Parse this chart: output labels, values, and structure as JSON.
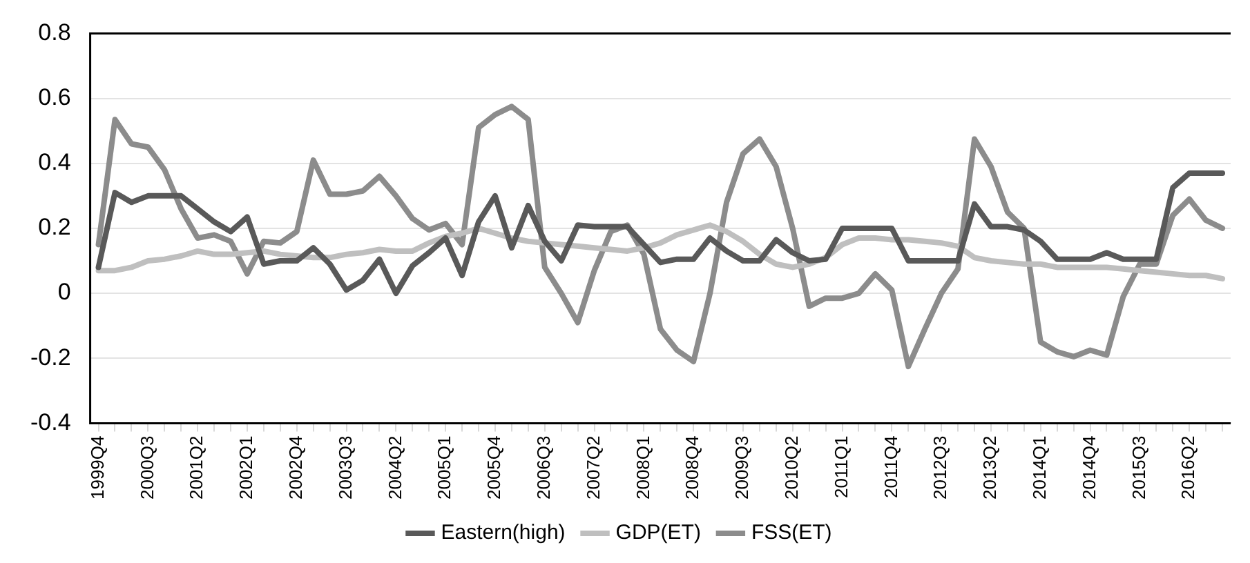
{
  "chart_data": {
    "type": "line",
    "categories": [
      "1999Q4",
      null,
      null,
      "2000Q3",
      null,
      null,
      "2001Q2",
      null,
      null,
      "2002Q1",
      null,
      null,
      "2002Q4",
      null,
      null,
      "2003Q3",
      null,
      null,
      "2004Q2",
      null,
      null,
      "2005Q1",
      null,
      null,
      "2005Q4",
      null,
      null,
      "2006Q3",
      null,
      null,
      "2007Q2",
      null,
      null,
      "2008Q1",
      null,
      null,
      "2008Q4",
      null,
      null,
      "2009Q3",
      null,
      null,
      "2010Q2",
      null,
      null,
      "2011Q1",
      null,
      null,
      "2011Q4",
      null,
      null,
      "2012Q3",
      null,
      null,
      "2013Q2",
      null,
      null,
      "2014Q1",
      null,
      null,
      "2014Q4",
      null,
      null,
      "2015Q3",
      null,
      null,
      "2016Q2",
      null,
      null
    ],
    "series": [
      {
        "name": "Eastern(high)",
        "color": "#595959",
        "values": [
          0.08,
          0.31,
          0.28,
          0.3,
          0.3,
          0.3,
          0.26,
          0.22,
          0.19,
          0.235,
          0.09,
          0.1,
          0.1,
          0.14,
          0.09,
          0.01,
          0.04,
          0.105,
          0.0,
          0.085,
          0.125,
          0.17,
          0.055,
          0.22,
          0.3,
          0.14,
          0.27,
          0.16,
          0.1,
          0.21,
          0.205,
          0.205,
          0.205,
          0.15,
          0.095,
          0.105,
          0.105,
          0.17,
          0.13,
          0.1,
          0.1,
          0.165,
          0.125,
          0.1,
          0.105,
          0.2,
          0.2,
          0.2,
          0.2,
          0.1,
          0.1,
          0.1,
          0.1,
          0.275,
          0.205,
          0.205,
          0.195,
          0.16,
          0.105,
          0.105,
          0.105,
          0.125,
          0.105,
          0.105,
          0.105,
          0.325,
          0.37,
          0.37,
          0.37
        ]
      },
      {
        "name": "GDP(ET)",
        "color": "#bfbfbf",
        "values": [
          0.07,
          0.07,
          0.08,
          0.1,
          0.105,
          0.115,
          0.13,
          0.12,
          0.12,
          0.125,
          0.13,
          0.12,
          0.115,
          0.11,
          0.11,
          0.12,
          0.125,
          0.135,
          0.13,
          0.13,
          0.155,
          0.175,
          0.185,
          0.2,
          0.185,
          0.17,
          0.16,
          0.155,
          0.15,
          0.145,
          0.14,
          0.135,
          0.13,
          0.14,
          0.155,
          0.18,
          0.195,
          0.21,
          0.19,
          0.16,
          0.12,
          0.09,
          0.08,
          0.09,
          0.11,
          0.15,
          0.17,
          0.17,
          0.165,
          0.165,
          0.16,
          0.155,
          0.145,
          0.11,
          0.1,
          0.095,
          0.09,
          0.09,
          0.08,
          0.08,
          0.08,
          0.08,
          0.075,
          0.07,
          0.065,
          0.06,
          0.055,
          0.055,
          0.045
        ]
      },
      {
        "name": "FSS(ET)",
        "color": "#8c8c8c",
        "values": [
          0.15,
          0.535,
          0.46,
          0.45,
          0.38,
          0.26,
          0.17,
          0.18,
          0.16,
          0.06,
          0.16,
          0.155,
          0.19,
          0.41,
          0.305,
          0.305,
          0.315,
          0.36,
          0.3,
          0.23,
          0.195,
          0.215,
          0.15,
          0.51,
          0.55,
          0.575,
          0.535,
          0.08,
          0.0,
          -0.09,
          0.07,
          0.19,
          0.21,
          0.12,
          -0.11,
          -0.175,
          -0.21,
          0.0,
          0.28,
          0.43,
          0.475,
          0.39,
          0.2,
          -0.04,
          -0.015,
          -0.015,
          0.0,
          0.06,
          0.01,
          -0.225,
          -0.11,
          0.0,
          0.075,
          0.475,
          0.39,
          0.25,
          0.2,
          -0.15,
          -0.18,
          -0.195,
          -0.175,
          -0.19,
          -0.01,
          0.09,
          0.09,
          0.24,
          0.29,
          0.225,
          0.2
        ]
      }
    ],
    "ylim": [
      -0.4,
      0.8
    ],
    "yticks": [
      -0.4,
      -0.2,
      0,
      0.2,
      0.4,
      0.6,
      0.8
    ],
    "grid": "y",
    "legend": "bottom",
    "marker": "none",
    "line_style": "solid"
  }
}
